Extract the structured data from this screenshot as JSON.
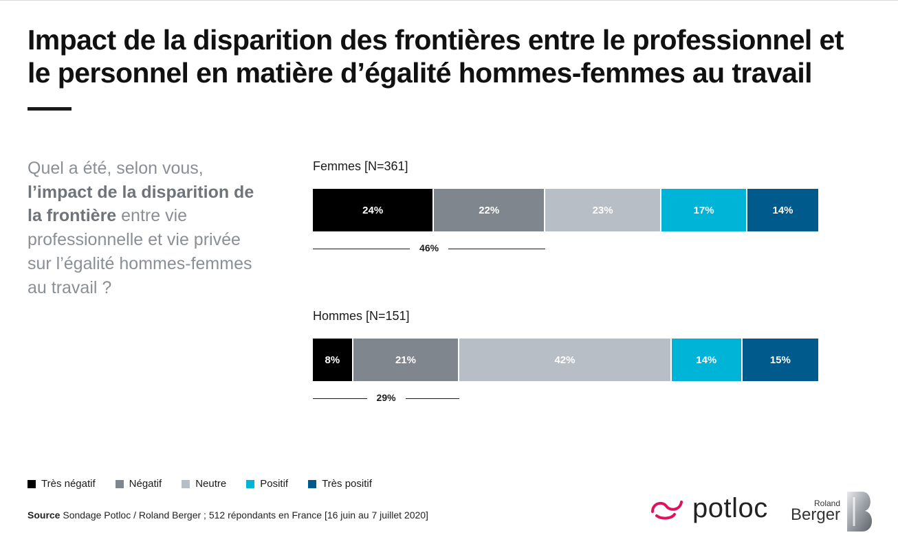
{
  "header": {
    "title_line1": "Impact de la disparition des frontières entre le professionnel et",
    "title_line2": "le personnel en matière d’égalité hommes-femmes au travail"
  },
  "question": {
    "part1": "Quel a été, selon vous, ",
    "bold": "l’impact de la disparition de la frontière",
    "part2": " entre vie professionnelle et vie privée sur l’égalité hommes-femmes au travail ?"
  },
  "chart_data": {
    "type": "bar",
    "orientation": "horizontal-stacked-100",
    "categories": [
      "Femmes [N=361]",
      "Hommes [N=151]"
    ],
    "series": [
      {
        "name": "Très négatif",
        "color": "#000000",
        "values": [
          24,
          8
        ]
      },
      {
        "name": "Négatif",
        "color": "#7f868e",
        "values": [
          22,
          21
        ]
      },
      {
        "name": "Neutre",
        "color": "#b8bec6",
        "values": [
          23,
          42
        ]
      },
      {
        "name": "Positif",
        "color": "#00b4d8",
        "values": [
          17,
          14
        ]
      },
      {
        "name": "Très positif",
        "color": "#005a8b",
        "values": [
          14,
          15
        ]
      }
    ],
    "value_labels": [
      [
        "24%",
        "22%",
        "23%",
        "17%",
        "14%"
      ],
      [
        "8%",
        "21%",
        "42%",
        "14%",
        "15%"
      ]
    ],
    "negative_totals": [
      46,
      29
    ],
    "negative_total_labels": [
      "46%",
      "29%"
    ],
    "unit": "%",
    "xlim": [
      0,
      100
    ],
    "legend_position": "bottom-left"
  },
  "footer": {
    "source_label": "Source",
    "source_text": " Sondage Potloc / Roland Berger ; 512 répondants en France [16 juin au 7 juillet 2020]",
    "logo_potloc": "potloc",
    "logo_rb_small": "Roland",
    "logo_rb_big": "Berger",
    "potloc_color": "#e0115f"
  }
}
